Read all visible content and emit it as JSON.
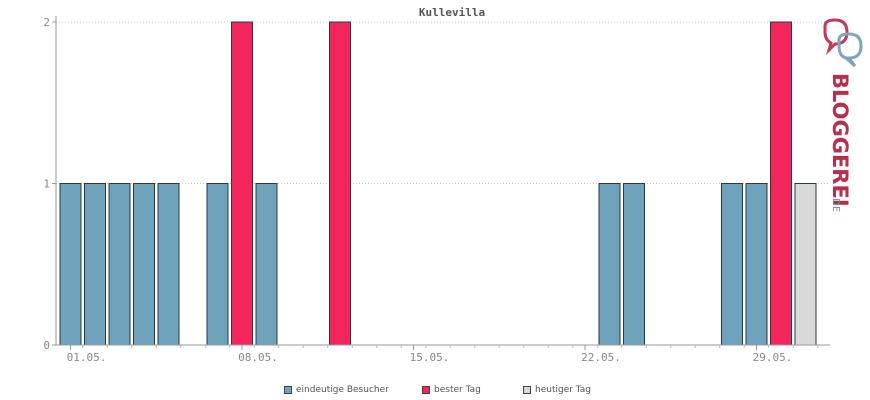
{
  "chart_data": {
    "type": "bar",
    "title": "Kullevilla",
    "yticks": [
      0,
      1,
      2
    ],
    "ylim": [
      0,
      2
    ],
    "xtick_labels": [
      {
        "day": 1,
        "label": "01.05."
      },
      {
        "day": 8,
        "label": "08.05."
      },
      {
        "day": 15,
        "label": "15.05."
      },
      {
        "day": 22,
        "label": "22.05."
      },
      {
        "day": 29,
        "label": "29.05."
      }
    ],
    "days": [
      1,
      2,
      3,
      4,
      5,
      6,
      7,
      8,
      9,
      10,
      11,
      12,
      13,
      14,
      15,
      16,
      17,
      18,
      19,
      20,
      21,
      22,
      23,
      24,
      25,
      26,
      27,
      28,
      29,
      30,
      31
    ],
    "series": [
      {
        "name": "eindeutige Besucher",
        "color": "#6fa3bb",
        "values": [
          1,
          1,
          1,
          1,
          1,
          0,
          1,
          0,
          1,
          0,
          0,
          0,
          0,
          0,
          0,
          0,
          0,
          0,
          0,
          0,
          0,
          0,
          1,
          1,
          0,
          0,
          0,
          1,
          1,
          0,
          0
        ]
      },
      {
        "name": "bester Tag",
        "color": "#f2265a",
        "values": [
          0,
          0,
          0,
          0,
          0,
          0,
          0,
          2,
          0,
          0,
          0,
          2,
          0,
          0,
          0,
          0,
          0,
          0,
          0,
          0,
          0,
          0,
          0,
          0,
          0,
          0,
          0,
          0,
          0,
          2,
          0
        ]
      },
      {
        "name": "heutiger Tag",
        "color": "#d9d9d9",
        "values": [
          0,
          0,
          0,
          0,
          0,
          0,
          0,
          0,
          0,
          0,
          0,
          0,
          0,
          0,
          0,
          0,
          0,
          0,
          0,
          0,
          0,
          0,
          0,
          0,
          0,
          0,
          0,
          0,
          0,
          0,
          1
        ]
      }
    ],
    "grid": true,
    "legend_position": "bottom"
  },
  "logo": {
    "text_main": "BLOGGEREI",
    "text_suffix": ".DE",
    "color_main": "#b5304d",
    "color_suffix": "#6a8fa6"
  }
}
